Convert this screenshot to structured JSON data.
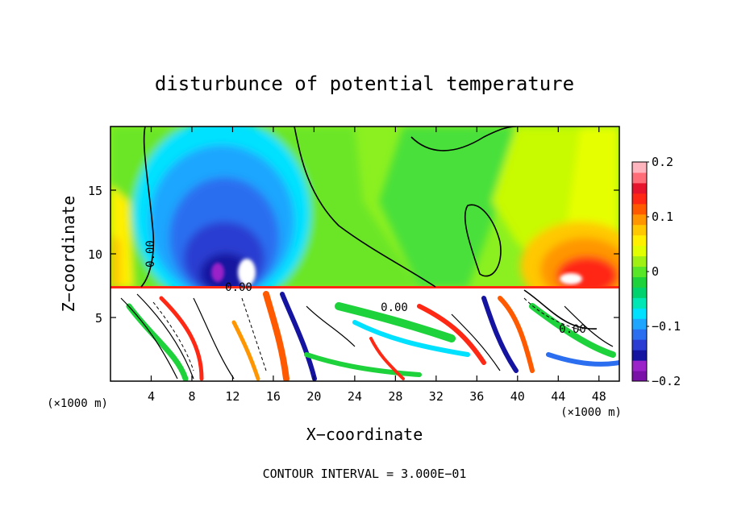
{
  "chart_data": {
    "type": "heatmap",
    "title": "disturbunce of potential temperature",
    "xlabel": "X−coordinate",
    "ylabel": "Z−coordinate",
    "x_unit_left": "(×1000 m)",
    "x_unit_right": "(×1000 m)",
    "xlim": [
      0,
      50
    ],
    "ylim": [
      0,
      20
    ],
    "x_ticks": [
      4,
      8,
      12,
      16,
      20,
      24,
      28,
      32,
      36,
      40,
      44,
      48
    ],
    "y_ticks": [
      5,
      10,
      15
    ],
    "colorbar": {
      "range": [
        -0.2,
        0.2
      ],
      "ticks": [
        {
          "value": 0.2,
          "label": "0.2"
        },
        {
          "value": 0.1,
          "label": "0.1"
        },
        {
          "value": 0,
          "label": "0"
        },
        {
          "value": -0.1,
          "label": "−0.1"
        },
        {
          "value": -0.2,
          "label": "−0.2"
        }
      ],
      "colors": [
        "#7b12a8",
        "#9a22c8",
        "#1414a0",
        "#2a3cd2",
        "#2c6ef0",
        "#1ea6ff",
        "#00e1ff",
        "#00e6b4",
        "#00d26e",
        "#1ed23c",
        "#5ae628",
        "#a0f014",
        "#e1ff00",
        "#fff000",
        "#ffc800",
        "#ff9600",
        "#ff5a00",
        "#ff2814",
        "#e6142d",
        "#ff6e78",
        "#ffb4be"
      ]
    },
    "contour_labels": [
      {
        "text": "0.00",
        "x": 2.6,
        "z": 10.0,
        "rotate": -90
      },
      {
        "text": "0.00",
        "x": 12.7,
        "z": 7.2,
        "rotate": 0
      },
      {
        "text": "0.00",
        "x": 27.8,
        "z": 5.8,
        "rotate": 0
      },
      {
        "text": "0.00",
        "x": 45.8,
        "z": 4.1,
        "rotate": 0
      }
    ],
    "contour_interval_text": "CONTOUR INTERVAL = 3.000E−01"
  }
}
